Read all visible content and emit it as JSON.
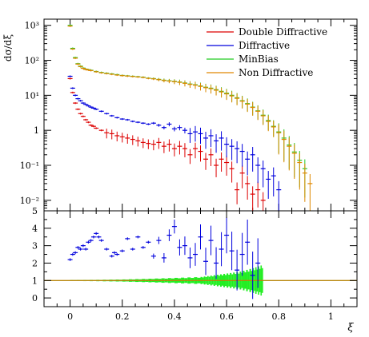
{
  "chart_data": [
    {
      "type": "scatter",
      "panel": "main",
      "ylabel": "dσ/dξ",
      "yscale": "log",
      "ylim": [
        0.005,
        1500
      ],
      "xlim": [
        -0.1,
        1.1
      ],
      "grid": false,
      "legend_position": "top-right",
      "legend": [
        {
          "name": "Double Diffractive",
          "color": "#dd0000"
        },
        {
          "name": "Diffractive",
          "color": "#0000dd"
        },
        {
          "name": "MinBias",
          "color": "#22cc22"
        },
        {
          "name": "Non Diffractive",
          "color": "#e08800"
        }
      ],
      "yticks": [
        {
          "value": 0.01,
          "label": "10⁻²"
        },
        {
          "value": 0.1,
          "label": "10⁻¹"
        },
        {
          "value": 1,
          "label": "1"
        },
        {
          "value": 10,
          "label": "10¹"
        },
        {
          "value": 100,
          "label": "10²"
        },
        {
          "value": 1000,
          "label": "10³"
        }
      ],
      "series": [
        {
          "name": "Double Diffractive",
          "color": "#dd0000",
          "x": [
            0.0,
            0.01,
            0.02,
            0.03,
            0.04,
            0.05,
            0.06,
            0.07,
            0.08,
            0.09,
            0.1,
            0.12,
            0.14,
            0.16,
            0.18,
            0.2,
            0.22,
            0.24,
            0.26,
            0.28,
            0.3,
            0.32,
            0.34,
            0.36,
            0.38,
            0.4,
            0.42,
            0.44,
            0.46,
            0.48,
            0.5,
            0.52,
            0.54,
            0.56,
            0.58,
            0.6,
            0.62,
            0.64,
            0.66,
            0.68,
            0.7,
            0.72,
            0.74
          ],
          "y": [
            30,
            12,
            6,
            4,
            3,
            2.5,
            2,
            1.7,
            1.4,
            1.3,
            1.15,
            1,
            0.85,
            0.8,
            0.7,
            0.65,
            0.6,
            0.55,
            0.5,
            0.45,
            0.42,
            0.4,
            0.45,
            0.35,
            0.4,
            0.3,
            0.35,
            0.3,
            0.2,
            0.3,
            0.25,
            0.15,
            0.2,
            0.1,
            0.15,
            0.12,
            0.08,
            0.02,
            0.06,
            0.03,
            0.015,
            0.02,
            0.01
          ]
        },
        {
          "name": "Diffractive",
          "color": "#0000dd",
          "x": [
            0.0,
            0.01,
            0.02,
            0.03,
            0.04,
            0.05,
            0.06,
            0.07,
            0.08,
            0.09,
            0.1,
            0.12,
            0.14,
            0.16,
            0.18,
            0.2,
            0.22,
            0.24,
            0.26,
            0.28,
            0.3,
            0.32,
            0.34,
            0.36,
            0.38,
            0.4,
            0.42,
            0.44,
            0.46,
            0.48,
            0.5,
            0.52,
            0.54,
            0.56,
            0.58,
            0.6,
            0.62,
            0.64,
            0.66,
            0.68,
            0.7,
            0.72,
            0.74,
            0.76,
            0.78,
            0.8
          ],
          "y": [
            35,
            16,
            10,
            8,
            7,
            6,
            5.5,
            5,
            4.6,
            4.3,
            4,
            3.5,
            3,
            2.6,
            2.3,
            2.1,
            2,
            1.8,
            1.7,
            1.6,
            1.5,
            1.6,
            1.4,
            1.2,
            1.5,
            1.1,
            1.2,
            1.0,
            0.8,
            0.9,
            0.8,
            0.6,
            0.7,
            0.5,
            0.6,
            0.4,
            0.35,
            0.3,
            0.25,
            0.15,
            0.2,
            0.1,
            0.08,
            0.04,
            0.05,
            0.02
          ]
        },
        {
          "name": "MinBias",
          "color": "#22cc22",
          "x": [
            0.0,
            0.01,
            0.02,
            0.03,
            0.04,
            0.05,
            0.06,
            0.07,
            0.08,
            0.1,
            0.12,
            0.14,
            0.16,
            0.18,
            0.2,
            0.22,
            0.24,
            0.26,
            0.28,
            0.3,
            0.32,
            0.34,
            0.36,
            0.38,
            0.4,
            0.42,
            0.44,
            0.46,
            0.48,
            0.5,
            0.52,
            0.54,
            0.56,
            0.58,
            0.6,
            0.62,
            0.64,
            0.66,
            0.68,
            0.7,
            0.72,
            0.74,
            0.76,
            0.78,
            0.8,
            0.82,
            0.84,
            0.86,
            0.88,
            0.9
          ],
          "y": [
            1000,
            220,
            120,
            80,
            68,
            60,
            56,
            54,
            52,
            48,
            45,
            43,
            41,
            39,
            37,
            36,
            35,
            34,
            33,
            31,
            30,
            28.5,
            27,
            26,
            25,
            24,
            22.5,
            21,
            20,
            18.5,
            17,
            16,
            14.5,
            13,
            11.5,
            10,
            8.5,
            7,
            5.8,
            4.6,
            3.6,
            2.7,
            1.9,
            1.3,
            0.9,
            0.6,
            0.38,
            0.24,
            0.14,
            0.08
          ]
        },
        {
          "name": "Non Diffractive",
          "color": "#e08800",
          "x": [
            0.0,
            0.01,
            0.02,
            0.03,
            0.04,
            0.05,
            0.06,
            0.07,
            0.08,
            0.1,
            0.12,
            0.14,
            0.16,
            0.18,
            0.2,
            0.22,
            0.24,
            0.26,
            0.28,
            0.3,
            0.32,
            0.34,
            0.36,
            0.38,
            0.4,
            0.42,
            0.44,
            0.46,
            0.48,
            0.5,
            0.52,
            0.54,
            0.56,
            0.58,
            0.6,
            0.62,
            0.64,
            0.66,
            0.68,
            0.7,
            0.72,
            0.74,
            0.76,
            0.78,
            0.8,
            0.82,
            0.84,
            0.86,
            0.88,
            0.9,
            0.92
          ],
          "y": [
            950,
            210,
            115,
            78,
            66,
            59,
            55,
            53,
            51,
            47,
            44,
            42,
            40,
            38,
            36.5,
            35.5,
            34.5,
            33.5,
            32.5,
            30.5,
            29.5,
            28,
            26.5,
            25.5,
            24.5,
            23.5,
            22,
            20.5,
            19.5,
            18,
            16.5,
            15.5,
            14,
            12.5,
            11,
            9.6,
            8.2,
            6.8,
            5.6,
            4.5,
            3.5,
            2.6,
            1.8,
            1.25,
            0.85,
            0.55,
            0.35,
            0.22,
            0.12,
            0.06,
            0.03
          ]
        }
      ]
    },
    {
      "type": "scatter",
      "panel": "ratio",
      "xlabel": "ξ",
      "xlim": [
        -0.1,
        1.1
      ],
      "ylim": [
        -0.5,
        5
      ],
      "xticks": [
        {
          "value": 0,
          "label": "0"
        },
        {
          "value": 0.2,
          "label": "0.2"
        },
        {
          "value": 0.4,
          "label": "0.4"
        },
        {
          "value": 0.6,
          "label": "0.6"
        },
        {
          "value": 0.8,
          "label": "0.8"
        },
        {
          "value": 1,
          "label": "1"
        }
      ],
      "yticks": [
        {
          "value": 0,
          "label": "0"
        },
        {
          "value": 1,
          "label": "1"
        },
        {
          "value": 2,
          "label": "2"
        },
        {
          "value": 3,
          "label": "3"
        },
        {
          "value": 4,
          "label": "4"
        },
        {
          "value": 5,
          "label": "5"
        }
      ],
      "reference_line": {
        "value": 1,
        "color": "#b8860b"
      },
      "band": {
        "name": "MinBias",
        "color": "#22ee22",
        "x": [
          0.0,
          0.1,
          0.2,
          0.3,
          0.4,
          0.5,
          0.55,
          0.6,
          0.65,
          0.7,
          0.74
        ],
        "half_width": [
          0.03,
          0.04,
          0.06,
          0.1,
          0.15,
          0.2,
          0.3,
          0.4,
          0.5,
          0.7,
          0.9
        ]
      },
      "series": [
        {
          "name": "Diffractive / MinBias",
          "color": "#0000dd",
          "x": [
            0.0,
            0.01,
            0.02,
            0.03,
            0.04,
            0.05,
            0.06,
            0.07,
            0.08,
            0.09,
            0.1,
            0.11,
            0.12,
            0.14,
            0.16,
            0.17,
            0.18,
            0.2,
            0.22,
            0.24,
            0.26,
            0.28,
            0.3,
            0.32,
            0.34,
            0.36,
            0.38,
            0.4,
            0.42,
            0.44,
            0.46,
            0.48,
            0.5,
            0.52,
            0.54,
            0.56,
            0.58,
            0.6,
            0.62,
            0.64,
            0.66,
            0.68,
            0.7,
            0.72
          ],
          "y": [
            2.2,
            2.5,
            2.6,
            2.9,
            2.8,
            3.0,
            2.8,
            3.2,
            3.3,
            3.5,
            3.7,
            3.5,
            3.3,
            2.8,
            2.4,
            2.6,
            2.5,
            2.7,
            3.4,
            2.8,
            3.5,
            2.9,
            3.2,
            2.4,
            3.3,
            2.3,
            3.6,
            4.1,
            2.9,
            3.0,
            2.3,
            2.5,
            3.5,
            2.1,
            3.3,
            2.0,
            2.8,
            3.6,
            2.7,
            1.6,
            2.5,
            3.2,
            1.3,
            2.0
          ]
        }
      ]
    }
  ]
}
